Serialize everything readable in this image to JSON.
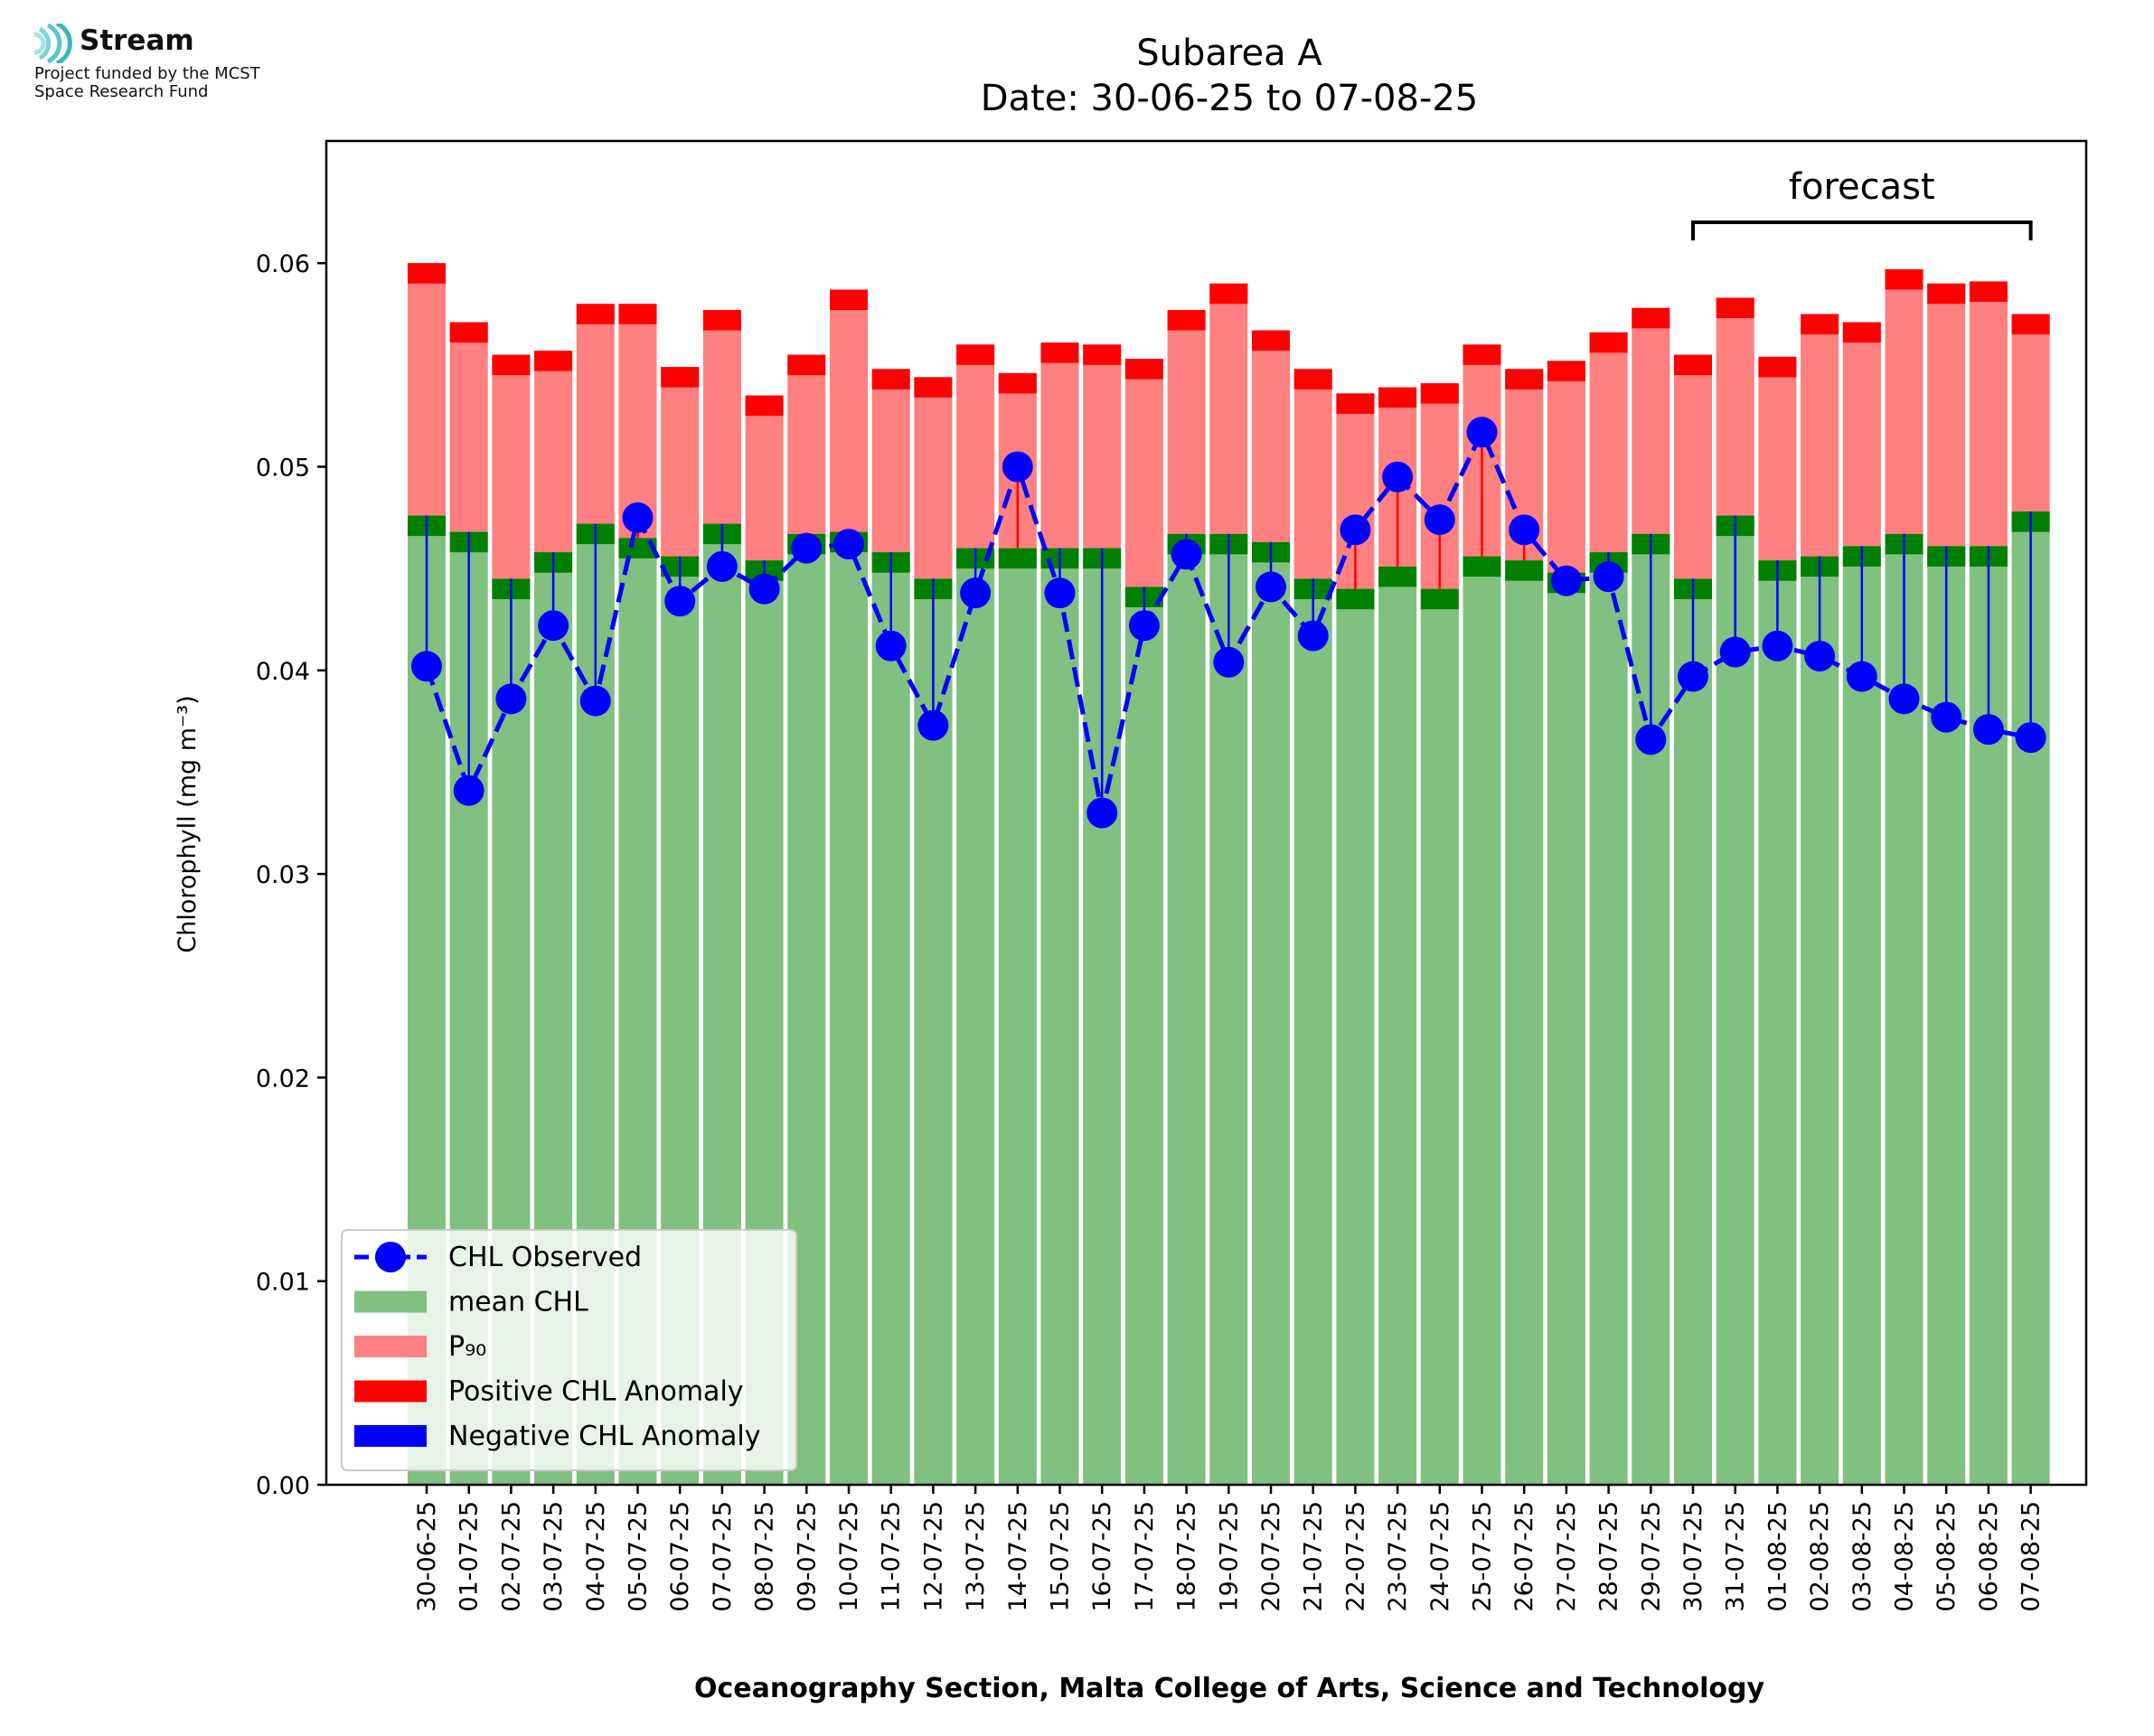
{
  "logo": {
    "brand": "Stream",
    "funded_line1": "Project funded by the MCST",
    "funded_line2": "Space Research Fund"
  },
  "chart_data": {
    "type": "bar",
    "title": "Subarea A",
    "subtitle": "Date: 30-06-25 to 07-08-25",
    "xlabel": "Oceanography Section, Malta College of Arts, Science and Technology",
    "ylabel": "Chlorophyll (mg m⁻³)",
    "ylim": [
      0,
      0.066
    ],
    "yticks": [
      "0.00",
      "0.01",
      "0.02",
      "0.03",
      "0.04",
      "0.05",
      "0.06"
    ],
    "forecast_label": "forecast",
    "forecast_start": "30-07-25",
    "forecast_end": "07-08-25",
    "legend_position": "lower-left",
    "colors": {
      "mean": "#80c080",
      "mean_band": "#008000",
      "p90": "#ff8080",
      "p90_band": "#ff0000",
      "observed": "#0000ff",
      "positive_anomaly": "#ff0000",
      "negative_anomaly": "#0000ff"
    },
    "legend": [
      {
        "key": "observed",
        "label": "CHL Observed"
      },
      {
        "key": "mean",
        "label": "mean CHL"
      },
      {
        "key": "p90",
        "label": "P₉₀"
      },
      {
        "key": "positive_anomaly",
        "label": "Positive CHL Anomaly"
      },
      {
        "key": "negative_anomaly",
        "label": "Negative CHL Anomaly"
      }
    ],
    "categories": [
      "30-06-25",
      "01-07-25",
      "02-07-25",
      "03-07-25",
      "04-07-25",
      "05-07-25",
      "06-07-25",
      "07-07-25",
      "08-07-25",
      "09-07-25",
      "10-07-25",
      "11-07-25",
      "12-07-25",
      "13-07-25",
      "14-07-25",
      "15-07-25",
      "16-07-25",
      "17-07-25",
      "18-07-25",
      "19-07-25",
      "20-07-25",
      "21-07-25",
      "22-07-25",
      "23-07-25",
      "24-07-25",
      "25-07-25",
      "26-07-25",
      "27-07-25",
      "28-07-25",
      "29-07-25",
      "30-07-25",
      "31-07-25",
      "01-08-25",
      "02-08-25",
      "03-08-25",
      "04-08-25",
      "05-08-25",
      "06-08-25",
      "07-08-25"
    ],
    "series": [
      {
        "name": "mean CHL",
        "values": [
          0.0476,
          0.0468,
          0.0445,
          0.0458,
          0.0472,
          0.0465,
          0.0456,
          0.0472,
          0.0454,
          0.0467,
          0.0468,
          0.0458,
          0.0445,
          0.046,
          0.046,
          0.046,
          0.046,
          0.0441,
          0.0467,
          0.0467,
          0.0463,
          0.0445,
          0.044,
          0.0451,
          0.044,
          0.0456,
          0.0454,
          0.0448,
          0.0458,
          0.0467,
          0.0445,
          0.0476,
          0.0454,
          0.0456,
          0.0461,
          0.0467,
          0.0461,
          0.0461,
          0.0478
        ]
      },
      {
        "name": "P₉₀",
        "values": [
          0.06,
          0.0571,
          0.0555,
          0.0557,
          0.058,
          0.058,
          0.0549,
          0.0577,
          0.0535,
          0.0555,
          0.0587,
          0.0548,
          0.0544,
          0.056,
          0.0546,
          0.0561,
          0.056,
          0.0553,
          0.0577,
          0.059,
          0.0567,
          0.0548,
          0.0536,
          0.0539,
          0.0541,
          0.056,
          0.0548,
          0.0552,
          0.0566,
          0.0578,
          0.0555,
          0.0583,
          0.0554,
          0.0575,
          0.0571,
          0.0597,
          0.059,
          0.0591,
          0.0575
        ]
      },
      {
        "name": "CHL Observed",
        "values": [
          0.0402,
          0.0341,
          0.0386,
          0.0422,
          0.0385,
          0.0475,
          0.0434,
          0.0451,
          0.044,
          0.046,
          0.0462,
          0.0412,
          0.0373,
          0.0438,
          0.05,
          0.0438,
          0.033,
          0.0422,
          0.0457,
          0.0404,
          0.0441,
          0.0417,
          0.0469,
          0.0495,
          0.0474,
          0.0517,
          0.0469,
          0.0444,
          0.0446,
          0.0366,
          0.0397,
          0.0409,
          0.0412,
          0.0407,
          0.0397,
          0.0386,
          0.0377,
          0.0371,
          0.0367
        ]
      }
    ]
  }
}
